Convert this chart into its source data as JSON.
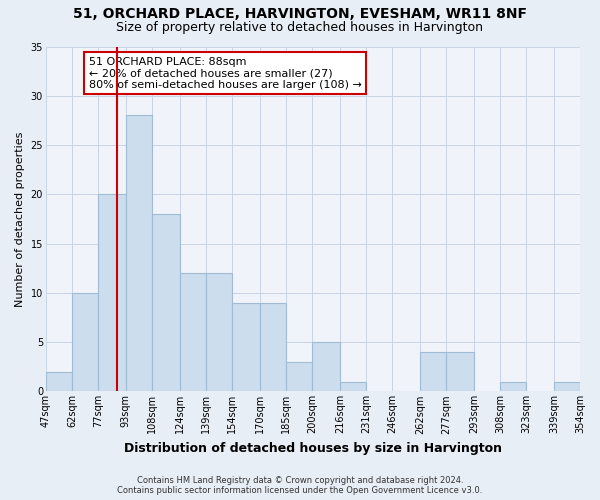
{
  "title": "51, ORCHARD PLACE, HARVINGTON, EVESHAM, WR11 8NF",
  "subtitle": "Size of property relative to detached houses in Harvington",
  "xlabel": "Distribution of detached houses by size in Harvington",
  "ylabel": "Number of detached properties",
  "bin_edges": [
    47,
    62,
    77,
    93,
    108,
    124,
    139,
    154,
    170,
    185,
    200,
    216,
    231,
    246,
    262,
    277,
    293,
    308,
    323,
    339,
    354
  ],
  "bar_heights": [
    2,
    10,
    20,
    28,
    18,
    12,
    12,
    9,
    9,
    3,
    5,
    1,
    0,
    0,
    4,
    4,
    0,
    1,
    0,
    1
  ],
  "bar_color": "#ccdded",
  "bar_edge_color": "#a0bcd4",
  "vline_x": 88,
  "vline_color": "#cc0000",
  "annotation_box_text": "51 ORCHARD PLACE: 88sqm\n← 20% of detached houses are smaller (27)\n80% of semi-detached houses are larger (108) →",
  "annotation_box_edge_color": "#cc0000",
  "annotation_box_face_color": "#ffffff",
  "ylim": [
    0,
    35
  ],
  "yticks": [
    0,
    5,
    10,
    15,
    20,
    25,
    30,
    35
  ],
  "tick_labels": [
    "47sqm",
    "62sqm",
    "77sqm",
    "93sqm",
    "108sqm",
    "124sqm",
    "139sqm",
    "154sqm",
    "170sqm",
    "185sqm",
    "200sqm",
    "216sqm",
    "231sqm",
    "246sqm",
    "262sqm",
    "277sqm",
    "293sqm",
    "308sqm",
    "323sqm",
    "339sqm",
    "354sqm"
  ],
  "footer_line1": "Contains HM Land Registry data © Crown copyright and database right 2024.",
  "footer_line2": "Contains public sector information licensed under the Open Government Licence v3.0.",
  "bg_color": "#e8eef6",
  "plot_bg_color": "#f0f4fa",
  "grid_color": "#c8d4e4",
  "title_fontsize": 10,
  "subtitle_fontsize": 9,
  "xlabel_fontsize": 9,
  "ylabel_fontsize": 8,
  "annot_fontsize": 8,
  "tick_fontsize": 7
}
